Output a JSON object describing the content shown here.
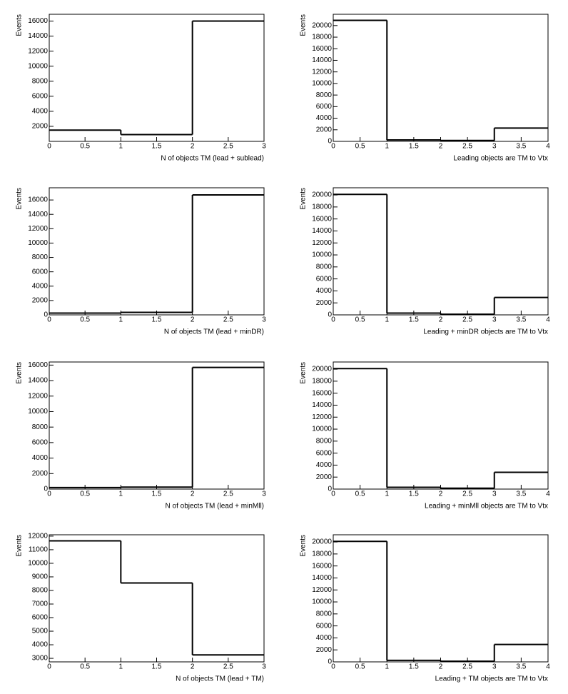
{
  "chart_data": [
    {
      "type": "histogram",
      "x_label": "N of objects TM (lead + sublead)",
      "y_label": "Events",
      "bins": [
        0,
        1,
        2,
        3
      ],
      "values": [
        1500,
        900,
        16000
      ],
      "color": "#000000",
      "xlim": [
        0,
        3
      ],
      "xticks": [
        0,
        0.5,
        1,
        1.5,
        2,
        2.5,
        3
      ],
      "ylim": [
        0,
        16900
      ],
      "yticks": [
        2000,
        4000,
        6000,
        8000,
        10000,
        12000,
        14000,
        16000
      ],
      "grid": false
    },
    {
      "type": "histogram",
      "x_label": "Leading objects are TM to Vtx",
      "y_label": "Events",
      "bins": [
        0,
        1,
        2,
        3,
        4
      ],
      "values": [
        20900,
        250,
        150,
        2300
      ],
      "color": "#000000",
      "xlim": [
        0,
        4
      ],
      "xticks": [
        0,
        0.5,
        1,
        1.5,
        2,
        2.5,
        3,
        3.5,
        4
      ],
      "ylim": [
        0,
        21950
      ],
      "yticks": [
        0,
        2000,
        4000,
        6000,
        8000,
        10000,
        12000,
        14000,
        16000,
        18000,
        20000
      ],
      "grid": false
    },
    {
      "type": "histogram",
      "x_label": "N of objects TM (lead + minDR)",
      "y_label": "Events",
      "bins": [
        0,
        1,
        2,
        3
      ],
      "values": [
        250,
        350,
        16700
      ],
      "color": "#000000",
      "xlim": [
        0,
        3
      ],
      "xticks": [
        0,
        0.5,
        1,
        1.5,
        2,
        2.5,
        3
      ],
      "ylim": [
        0,
        17700
      ],
      "yticks": [
        0,
        2000,
        4000,
        6000,
        8000,
        10000,
        12000,
        14000,
        16000
      ],
      "grid": false
    },
    {
      "type": "histogram",
      "x_label": "Leading + minDR objects are TM to Vtx",
      "y_label": "Events",
      "bins": [
        0,
        1,
        2,
        3,
        4
      ],
      "values": [
        20100,
        300,
        100,
        2900
      ],
      "color": "#000000",
      "xlim": [
        0,
        4
      ],
      "xticks": [
        0,
        0.5,
        1,
        1.5,
        2,
        2.5,
        3,
        3.5,
        4
      ],
      "ylim": [
        0,
        21200
      ],
      "yticks": [
        0,
        2000,
        4000,
        6000,
        8000,
        10000,
        12000,
        14000,
        16000,
        18000,
        20000
      ],
      "grid": false
    },
    {
      "type": "histogram",
      "x_label": "N of objects TM (lead + minMll)",
      "y_label": "Events",
      "bins": [
        0,
        1,
        2,
        3
      ],
      "values": [
        200,
        250,
        15700
      ],
      "color": "#000000",
      "xlim": [
        0,
        3
      ],
      "xticks": [
        0,
        0.5,
        1,
        1.5,
        2,
        2.5,
        3
      ],
      "ylim": [
        0,
        16400
      ],
      "yticks": [
        0,
        2000,
        4000,
        6000,
        8000,
        10000,
        12000,
        14000,
        16000
      ],
      "grid": false
    },
    {
      "type": "histogram",
      "x_label": "Leading + minMll objects are TM to Vtx",
      "y_label": "Events",
      "bins": [
        0,
        1,
        2,
        3,
        4
      ],
      "values": [
        20100,
        300,
        150,
        2800
      ],
      "color": "#000000",
      "xlim": [
        0,
        4
      ],
      "xticks": [
        0,
        0.5,
        1,
        1.5,
        2,
        2.5,
        3,
        3.5,
        4
      ],
      "ylim": [
        0,
        21200
      ],
      "yticks": [
        0,
        2000,
        4000,
        6000,
        8000,
        10000,
        12000,
        14000,
        16000,
        18000,
        20000
      ],
      "grid": false
    },
    {
      "type": "histogram",
      "x_label": "N of objects TM (lead + TM)",
      "y_label": "Events",
      "bins": [
        0,
        1,
        2,
        3
      ],
      "values": [
        11650,
        8550,
        3250
      ],
      "color": "#000000",
      "xlim": [
        0,
        3
      ],
      "xticks": [
        0,
        0.5,
        1,
        1.5,
        2,
        2.5,
        3
      ],
      "ylim": [
        2740,
        12100
      ],
      "yticks": [
        3000,
        4000,
        5000,
        6000,
        7000,
        8000,
        9000,
        10000,
        11000,
        12000
      ],
      "grid": false
    },
    {
      "type": "histogram",
      "x_label": "Leading + TM objects are TM to Vtx",
      "y_label": "Events",
      "bins": [
        0,
        1,
        2,
        3,
        4
      ],
      "values": [
        20100,
        250,
        100,
        2900
      ],
      "color": "#000000",
      "xlim": [
        0,
        4
      ],
      "xticks": [
        0,
        0.5,
        1,
        1.5,
        2,
        2.5,
        3,
        3.5,
        4
      ],
      "ylim": [
        0,
        21200
      ],
      "yticks": [
        0,
        2000,
        4000,
        6000,
        8000,
        10000,
        12000,
        14000,
        16000,
        18000,
        20000
      ],
      "grid": false
    }
  ]
}
